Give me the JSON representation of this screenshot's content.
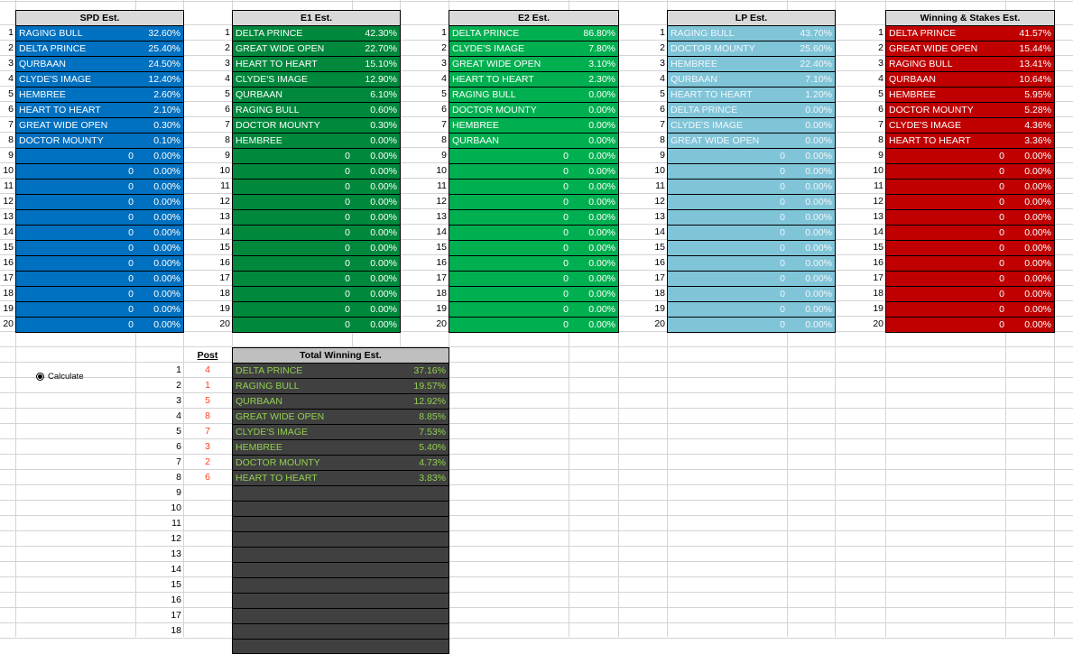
{
  "colors": {
    "spd": "#0070c0",
    "e1": "#00883c",
    "e2": "#00b050",
    "lp": "#80c4d8",
    "ws": "#c00000",
    "total": "#404040",
    "total_text": "#92d050",
    "header": "#d9d9d9",
    "post_text": "#ff3b1f"
  },
  "row_numbers": [
    "1",
    "2",
    "3",
    "4",
    "5",
    "6",
    "7",
    "8",
    "9",
    "10",
    "11",
    "12",
    "13",
    "14",
    "15",
    "16",
    "17",
    "18",
    "19",
    "20"
  ],
  "tables": [
    {
      "id": "spd",
      "title": "SPD Est.",
      "rows": [
        {
          "name": "RAGING BULL",
          "num": "",
          "pct": "32.60%"
        },
        {
          "name": "DELTA PRINCE",
          "num": "",
          "pct": "25.40%"
        },
        {
          "name": "QURBAAN",
          "num": "",
          "pct": "24.50%"
        },
        {
          "name": "CLYDE'S IMAGE",
          "num": "",
          "pct": "12.40%"
        },
        {
          "name": "HEMBREE",
          "num": "",
          "pct": "2.60%"
        },
        {
          "name": "HEART TO HEART",
          "num": "",
          "pct": "2.10%"
        },
        {
          "name": "GREAT WIDE OPEN",
          "num": "",
          "pct": "0.30%"
        },
        {
          "name": "DOCTOR MOUNTY",
          "num": "",
          "pct": "0.10%"
        },
        {
          "name": "",
          "num": "0",
          "pct": "0.00%"
        },
        {
          "name": "",
          "num": "0",
          "pct": "0.00%"
        },
        {
          "name": "",
          "num": "0",
          "pct": "0.00%"
        },
        {
          "name": "",
          "num": "0",
          "pct": "0.00%"
        },
        {
          "name": "",
          "num": "0",
          "pct": "0.00%"
        },
        {
          "name": "",
          "num": "0",
          "pct": "0.00%"
        },
        {
          "name": "",
          "num": "0",
          "pct": "0.00%"
        },
        {
          "name": "",
          "num": "0",
          "pct": "0.00%"
        },
        {
          "name": "",
          "num": "0",
          "pct": "0.00%"
        },
        {
          "name": "",
          "num": "0",
          "pct": "0.00%"
        },
        {
          "name": "",
          "num": "0",
          "pct": "0.00%"
        },
        {
          "name": "",
          "num": "0",
          "pct": "0.00%"
        }
      ]
    },
    {
      "id": "e1",
      "title": "E1 Est.",
      "rows": [
        {
          "name": "DELTA PRINCE",
          "num": "",
          "pct": "42.30%"
        },
        {
          "name": "GREAT WIDE OPEN",
          "num": "",
          "pct": "22.70%"
        },
        {
          "name": "HEART TO HEART",
          "num": "",
          "pct": "15.10%"
        },
        {
          "name": "CLYDE'S IMAGE",
          "num": "",
          "pct": "12.90%"
        },
        {
          "name": "QURBAAN",
          "num": "",
          "pct": "6.10%"
        },
        {
          "name": "RAGING BULL",
          "num": "",
          "pct": "0.60%"
        },
        {
          "name": "DOCTOR MOUNTY",
          "num": "",
          "pct": "0.30%"
        },
        {
          "name": "HEMBREE",
          "num": "",
          "pct": "0.00%"
        },
        {
          "name": "",
          "num": "0",
          "pct": "0.00%"
        },
        {
          "name": "",
          "num": "0",
          "pct": "0.00%"
        },
        {
          "name": "",
          "num": "0",
          "pct": "0.00%"
        },
        {
          "name": "",
          "num": "0",
          "pct": "0.00%"
        },
        {
          "name": "",
          "num": "0",
          "pct": "0.00%"
        },
        {
          "name": "",
          "num": "0",
          "pct": "0.00%"
        },
        {
          "name": "",
          "num": "0",
          "pct": "0.00%"
        },
        {
          "name": "",
          "num": "0",
          "pct": "0.00%"
        },
        {
          "name": "",
          "num": "0",
          "pct": "0.00%"
        },
        {
          "name": "",
          "num": "0",
          "pct": "0.00%"
        },
        {
          "name": "",
          "num": "0",
          "pct": "0.00%"
        },
        {
          "name": "",
          "num": "0",
          "pct": "0.00%"
        }
      ]
    },
    {
      "id": "e2",
      "title": "E2 Est.",
      "rows": [
        {
          "name": "DELTA PRINCE",
          "num": "",
          "pct": "86.80%"
        },
        {
          "name": "CLYDE'S IMAGE",
          "num": "",
          "pct": "7.80%"
        },
        {
          "name": "GREAT WIDE OPEN",
          "num": "",
          "pct": "3.10%"
        },
        {
          "name": "HEART TO HEART",
          "num": "",
          "pct": "2.30%"
        },
        {
          "name": "RAGING BULL",
          "num": "",
          "pct": "0.00%"
        },
        {
          "name": "DOCTOR MOUNTY",
          "num": "",
          "pct": "0.00%"
        },
        {
          "name": "HEMBREE",
          "num": "",
          "pct": "0.00%"
        },
        {
          "name": "QURBAAN",
          "num": "",
          "pct": "0.00%"
        },
        {
          "name": "",
          "num": "0",
          "pct": "0.00%"
        },
        {
          "name": "",
          "num": "0",
          "pct": "0.00%"
        },
        {
          "name": "",
          "num": "0",
          "pct": "0.00%"
        },
        {
          "name": "",
          "num": "0",
          "pct": "0.00%"
        },
        {
          "name": "",
          "num": "0",
          "pct": "0.00%"
        },
        {
          "name": "",
          "num": "0",
          "pct": "0.00%"
        },
        {
          "name": "",
          "num": "0",
          "pct": "0.00%"
        },
        {
          "name": "",
          "num": "0",
          "pct": "0.00%"
        },
        {
          "name": "",
          "num": "0",
          "pct": "0.00%"
        },
        {
          "name": "",
          "num": "0",
          "pct": "0.00%"
        },
        {
          "name": "",
          "num": "0",
          "pct": "0.00%"
        },
        {
          "name": "",
          "num": "0",
          "pct": "0.00%"
        }
      ]
    },
    {
      "id": "lp",
      "title": "LP Est.",
      "rows": [
        {
          "name": "RAGING BULL",
          "num": "",
          "pct": "43.70%"
        },
        {
          "name": "DOCTOR MOUNTY",
          "num": "",
          "pct": "25.60%"
        },
        {
          "name": "HEMBREE",
          "num": "",
          "pct": "22.40%"
        },
        {
          "name": "QURBAAN",
          "num": "",
          "pct": "7.10%"
        },
        {
          "name": "HEART TO HEART",
          "num": "",
          "pct": "1.20%"
        },
        {
          "name": "DELTA PRINCE",
          "num": "",
          "pct": "0.00%"
        },
        {
          "name": "CLYDE'S IMAGE",
          "num": "",
          "pct": "0.00%"
        },
        {
          "name": "GREAT WIDE OPEN",
          "num": "",
          "pct": "0.00%"
        },
        {
          "name": "",
          "num": "0",
          "pct": "0.00%"
        },
        {
          "name": "",
          "num": "0",
          "pct": "0.00%"
        },
        {
          "name": "",
          "num": "0",
          "pct": "0.00%"
        },
        {
          "name": "",
          "num": "0",
          "pct": "0.00%"
        },
        {
          "name": "",
          "num": "0",
          "pct": "0.00%"
        },
        {
          "name": "",
          "num": "0",
          "pct": "0.00%"
        },
        {
          "name": "",
          "num": "0",
          "pct": "0.00%"
        },
        {
          "name": "",
          "num": "0",
          "pct": "0.00%"
        },
        {
          "name": "",
          "num": "0",
          "pct": "0.00%"
        },
        {
          "name": "",
          "num": "0",
          "pct": "0.00%"
        },
        {
          "name": "",
          "num": "0",
          "pct": "0.00%"
        },
        {
          "name": "",
          "num": "0",
          "pct": "0.00%"
        }
      ]
    },
    {
      "id": "ws",
      "title": "Winning & Stakes Est.",
      "rows": [
        {
          "name": "DELTA PRINCE",
          "num": "",
          "pct": "41.57%"
        },
        {
          "name": "GREAT WIDE OPEN",
          "num": "",
          "pct": "15.44%"
        },
        {
          "name": "RAGING BULL",
          "num": "",
          "pct": "13.41%"
        },
        {
          "name": "QURBAAN",
          "num": "",
          "pct": "10.64%"
        },
        {
          "name": "HEMBREE",
          "num": "",
          "pct": "5.95%"
        },
        {
          "name": "DOCTOR MOUNTY",
          "num": "",
          "pct": "5.28%"
        },
        {
          "name": "CLYDE'S IMAGE",
          "num": "",
          "pct": "4.36%"
        },
        {
          "name": "HEART TO HEART",
          "num": "",
          "pct": "3.36%"
        },
        {
          "name": "",
          "num": "0",
          "pct": "0.00%"
        },
        {
          "name": "",
          "num": "0",
          "pct": "0.00%"
        },
        {
          "name": "",
          "num": "0",
          "pct": "0.00%"
        },
        {
          "name": "",
          "num": "0",
          "pct": "0.00%"
        },
        {
          "name": "",
          "num": "0",
          "pct": "0.00%"
        },
        {
          "name": "",
          "num": "0",
          "pct": "0.00%"
        },
        {
          "name": "",
          "num": "0",
          "pct": "0.00%"
        },
        {
          "name": "",
          "num": "0",
          "pct": "0.00%"
        },
        {
          "name": "",
          "num": "0",
          "pct": "0.00%"
        },
        {
          "name": "",
          "num": "0",
          "pct": "0.00%"
        },
        {
          "name": "",
          "num": "0",
          "pct": "0.00%"
        },
        {
          "name": "",
          "num": "0",
          "pct": "0.00%"
        }
      ]
    }
  ],
  "calculate": {
    "label": "Calculate",
    "selected": true
  },
  "total": {
    "post_header": "Post",
    "title": "Total Winning Est.",
    "row_numbers": [
      "1",
      "2",
      "3",
      "4",
      "5",
      "6",
      "7",
      "8",
      "9",
      "10",
      "11",
      "12",
      "13",
      "14",
      "15",
      "16",
      "17",
      "18"
    ],
    "posts": [
      "4",
      "1",
      "5",
      "8",
      "7",
      "3",
      "2",
      "6"
    ],
    "rows": [
      {
        "name": "DELTA PRINCE",
        "pct": "37.16%"
      },
      {
        "name": "RAGING BULL",
        "pct": "19.57%"
      },
      {
        "name": "QURBAAN",
        "pct": "12.92%"
      },
      {
        "name": "GREAT WIDE OPEN",
        "pct": "8.85%"
      },
      {
        "name": "CLYDE'S IMAGE",
        "pct": "7.53%"
      },
      {
        "name": "HEMBREE",
        "pct": "5.40%"
      },
      {
        "name": "DOCTOR MOUNTY",
        "pct": "4.73%"
      },
      {
        "name": "HEART TO HEART",
        "pct": "3.83%"
      },
      {
        "name": "",
        "pct": ""
      },
      {
        "name": "",
        "pct": ""
      },
      {
        "name": "",
        "pct": ""
      },
      {
        "name": "",
        "pct": ""
      },
      {
        "name": "",
        "pct": ""
      },
      {
        "name": "",
        "pct": ""
      },
      {
        "name": "",
        "pct": ""
      },
      {
        "name": "",
        "pct": ""
      },
      {
        "name": "",
        "pct": ""
      },
      {
        "name": "",
        "pct": ""
      }
    ]
  }
}
